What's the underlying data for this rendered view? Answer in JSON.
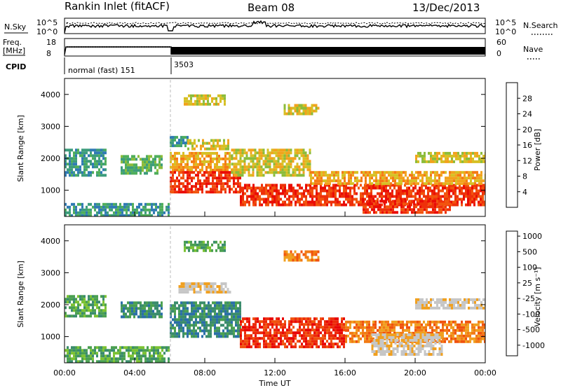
{
  "header": {
    "station": "Rankin Inlet (fitACF)",
    "beam": "Beam 08",
    "date": "13/Dec/2013"
  },
  "strips": {
    "nsky_label": "N.Sky",
    "nsky_ticks": [
      "10^5",
      "10^0"
    ],
    "nsearch_label": "N.Search",
    "nsearch_ticks": [
      "10^5",
      "10^0"
    ],
    "freq_label_line1": "Freq.",
    "freq_label_line2": "[MHz]",
    "freq_ticks": [
      "18",
      "8"
    ],
    "nave_label": "Nave",
    "nave_ticks": [
      "60",
      "0"
    ],
    "cpid_label": "CPID",
    "cpid_segments": [
      {
        "label": "normal (fast) 151",
        "start_hour": 0
      },
      {
        "label": "3503",
        "start_hour": 6
      }
    ]
  },
  "axes": {
    "ylabel": "Slant Range [km]",
    "xlabel": "Time UT",
    "y_ticks": [
      "1000",
      "2000",
      "3000",
      "4000"
    ],
    "x_ticks": [
      "00:00",
      "04:00",
      "08:00",
      "12:00",
      "16:00",
      "20:00",
      "00:00"
    ]
  },
  "colorbars": {
    "power": {
      "label": "Power [dB]",
      "ticks": [
        "4",
        "8",
        "12",
        "16",
        "20",
        "24",
        "28"
      ],
      "colors": [
        "#0a1cf0",
        "#1f4ed6",
        "#2f7ab4",
        "#3c9c7c",
        "#4fae5a",
        "#8cbc3a",
        "#d6c024",
        "#f2a21c",
        "#f47a14",
        "#f2540e",
        "#ee300a",
        "#ea0c06"
      ]
    },
    "velocity": {
      "label": "Velocity [m s⁻¹]",
      "ticks": [
        "1000",
        "500",
        "100",
        "25",
        "-25",
        "-100",
        "-500",
        "-1000"
      ],
      "colors": [
        "#1d3bcc",
        "#2a6fa8",
        "#3a8c6c",
        "#4aa050",
        "#7cc232",
        "#c6c6c6",
        "#c6c6c6",
        "#f0a020",
        "#f27a14",
        "#f0520e",
        "#ec2a0a",
        "#e80606"
      ]
    }
  },
  "chart_data": {
    "type": "heatmap",
    "x_range_hours": [
      0,
      24
    ],
    "y_range_km": [
      180,
      4500
    ],
    "panels": [
      {
        "name": "Power",
        "quantity": "Power [dB]",
        "regions": [
          {
            "t0": 0.0,
            "t1": 2.4,
            "r0": 1500,
            "r1": 2300,
            "value": 8
          },
          {
            "t0": 3.2,
            "t1": 5.6,
            "r0": 1500,
            "r1": 2100,
            "value": 12
          },
          {
            "t0": 0.0,
            "t1": 6.0,
            "r0": 200,
            "r1": 600,
            "value": 8
          },
          {
            "t0": 6.0,
            "t1": 7.0,
            "r0": 2400,
            "r1": 2700,
            "value": 8
          },
          {
            "t0": 7.0,
            "t1": 9.3,
            "r0": 2300,
            "r1": 2600,
            "value": 16
          },
          {
            "t0": 6.8,
            "t1": 9.2,
            "r0": 3700,
            "r1": 4000,
            "value": 16
          },
          {
            "t0": 6.0,
            "t1": 9.5,
            "r0": 1600,
            "r1": 2200,
            "value": 20
          },
          {
            "t0": 6.0,
            "t1": 10.0,
            "r0": 900,
            "r1": 1600,
            "value": 28
          },
          {
            "t0": 9.5,
            "t1": 14.0,
            "r0": 1500,
            "r1": 2300,
            "value": 16
          },
          {
            "t0": 10.0,
            "t1": 24.0,
            "r0": 500,
            "r1": 1200,
            "value": 28
          },
          {
            "t0": 14.0,
            "t1": 24.0,
            "r0": 1200,
            "r1": 1600,
            "value": 20
          },
          {
            "t0": 17.0,
            "t1": 22.0,
            "r0": 300,
            "r1": 700,
            "value": 28
          },
          {
            "t0": 12.5,
            "t1": 14.5,
            "r0": 3400,
            "r1": 3700,
            "value": 16
          },
          {
            "t0": 20.0,
            "t1": 24.0,
            "r0": 1900,
            "r1": 2200,
            "value": 16
          }
        ]
      },
      {
        "name": "Velocity",
        "quantity": "Velocity [m s-1]",
        "regions": [
          {
            "t0": 0.0,
            "t1": 2.4,
            "r0": 1600,
            "r1": 2300,
            "value": 100
          },
          {
            "t0": 3.2,
            "t1": 5.6,
            "r0": 1600,
            "r1": 2100,
            "value": 500
          },
          {
            "t0": 0.0,
            "t1": 6.0,
            "r0": 200,
            "r1": 700,
            "value": 100
          },
          {
            "t0": 6.5,
            "t1": 9.5,
            "r0": 2400,
            "r1": 2700,
            "value": 0
          },
          {
            "t0": 6.8,
            "t1": 9.2,
            "r0": 3700,
            "r1": 4000,
            "value": 100
          },
          {
            "t0": 6.0,
            "t1": 10.0,
            "r0": 1000,
            "r1": 2100,
            "value": 500
          },
          {
            "t0": 10.0,
            "t1": 16.0,
            "r0": 700,
            "r1": 1600,
            "value": -500
          },
          {
            "t0": 12.5,
            "t1": 14.5,
            "r0": 3400,
            "r1": 3700,
            "value": -100
          },
          {
            "t0": 16.0,
            "t1": 24.0,
            "r0": 800,
            "r1": 1500,
            "value": -100
          },
          {
            "t0": 17.5,
            "t1": 21.5,
            "r0": 400,
            "r1": 1100,
            "value": 0
          },
          {
            "t0": 20.0,
            "t1": 24.0,
            "r0": 1900,
            "r1": 2200,
            "value": -25
          }
        ]
      }
    ]
  }
}
